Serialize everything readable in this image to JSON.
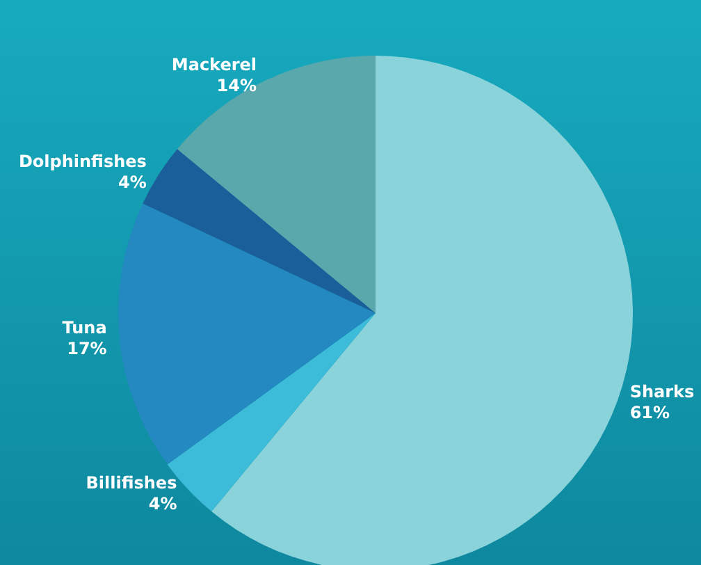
{
  "chart_data": {
    "type": "pie",
    "categories": [
      "Sharks",
      "Billifishes",
      "Tuna",
      "Dolphinfishes",
      "Mackerel"
    ],
    "values": [
      61,
      4,
      17,
      4,
      14
    ],
    "value_labels": [
      "61%",
      "4%",
      "17%",
      "4%",
      "14%"
    ],
    "colors": [
      "#8ad3da",
      "#3dbcd9",
      "#2389c0",
      "#1a5f9a",
      "#5aa8ab"
    ],
    "legend": false
  }
}
